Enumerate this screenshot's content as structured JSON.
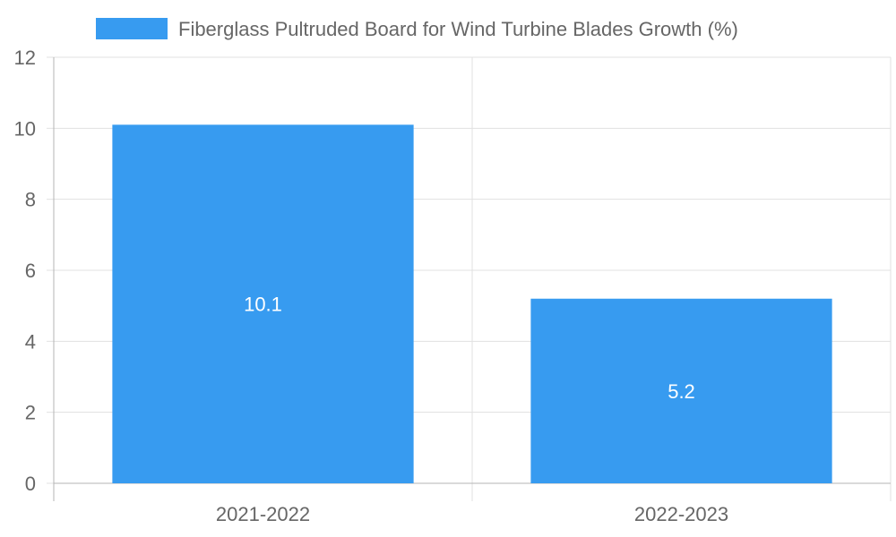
{
  "chart_data": {
    "type": "bar",
    "categories": [
      "2021-2022",
      "2022-2023"
    ],
    "series": [
      {
        "name": "Fiberglass Pultruded Board for Wind Turbine Blades Growth (%)",
        "values": [
          10.1,
          5.2
        ],
        "color": "#379bf0"
      }
    ],
    "data_labels": [
      "10.1",
      "5.2"
    ],
    "y_ticks": [
      0,
      2,
      4,
      6,
      8,
      10,
      12
    ],
    "ylim": [
      0,
      12
    ],
    "title": "",
    "xlabel": "",
    "ylabel": "",
    "grid": true,
    "legend_position": "top-center"
  },
  "colors": {
    "grid": "#e1e1e1",
    "axis": "#b4b4b4",
    "tick_text": "#666666",
    "label_text": "#ffffff"
  }
}
